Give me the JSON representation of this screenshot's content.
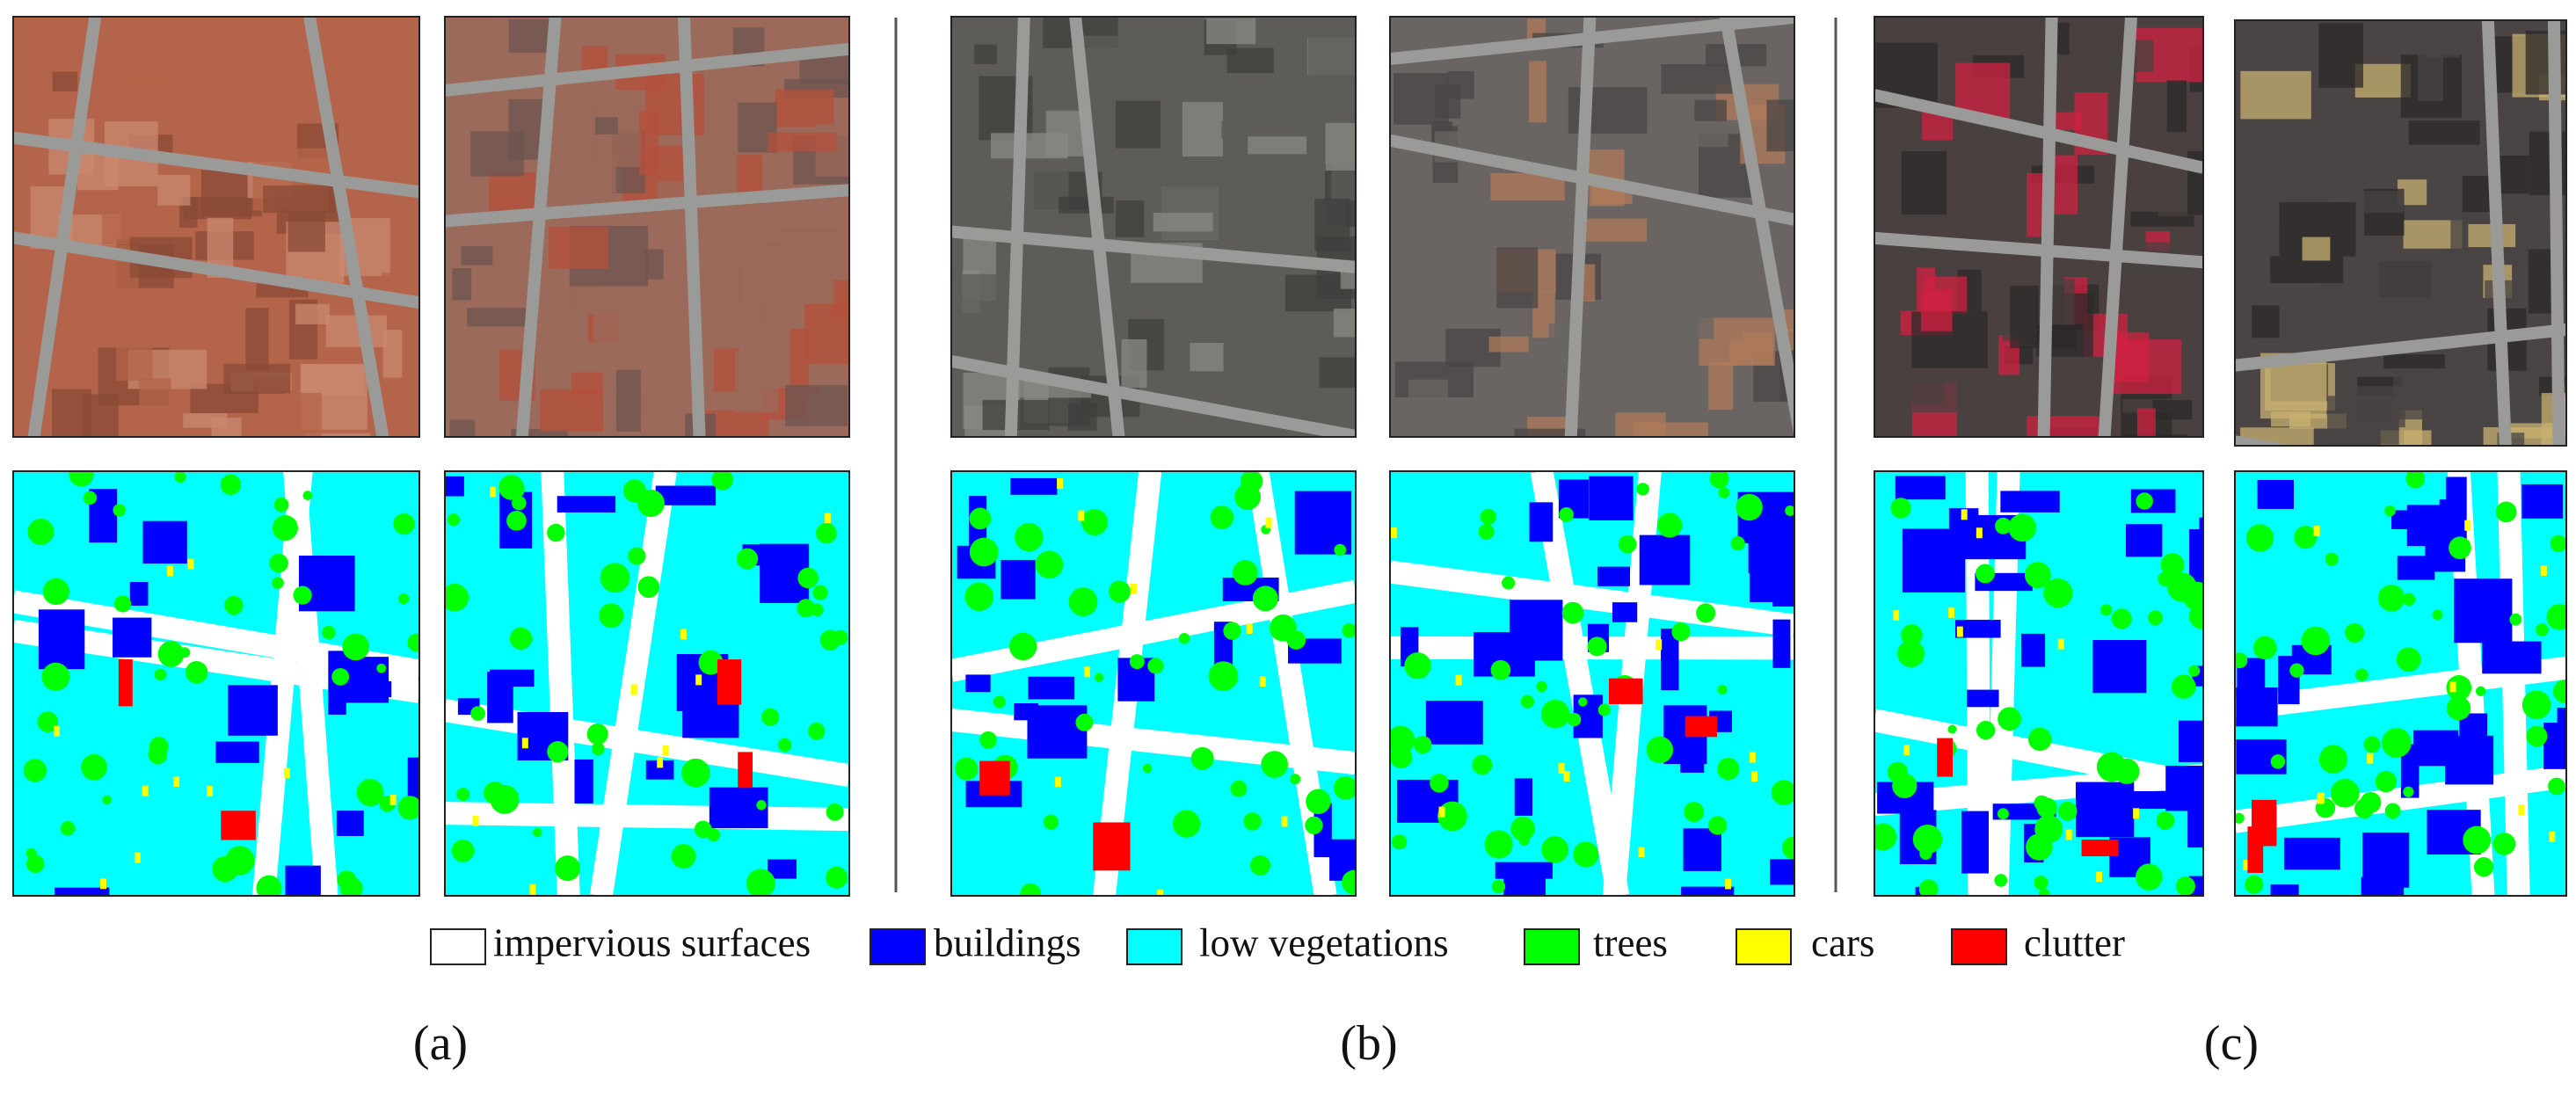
{
  "figure": {
    "legend": [
      {
        "label": "impervious surfaces",
        "color": "#ffffff"
      },
      {
        "label": "buildings",
        "color": "#0000ff"
      },
      {
        "label": "low vegetations",
        "color": "#00ffff"
      },
      {
        "label": "trees",
        "color": "#00ff00"
      },
      {
        "label": "cars",
        "color": "#ffff00"
      },
      {
        "label": "clutter",
        "color": "#ff0000"
      }
    ],
    "captions": [
      "(a)",
      "(b)",
      "(c)"
    ]
  }
}
